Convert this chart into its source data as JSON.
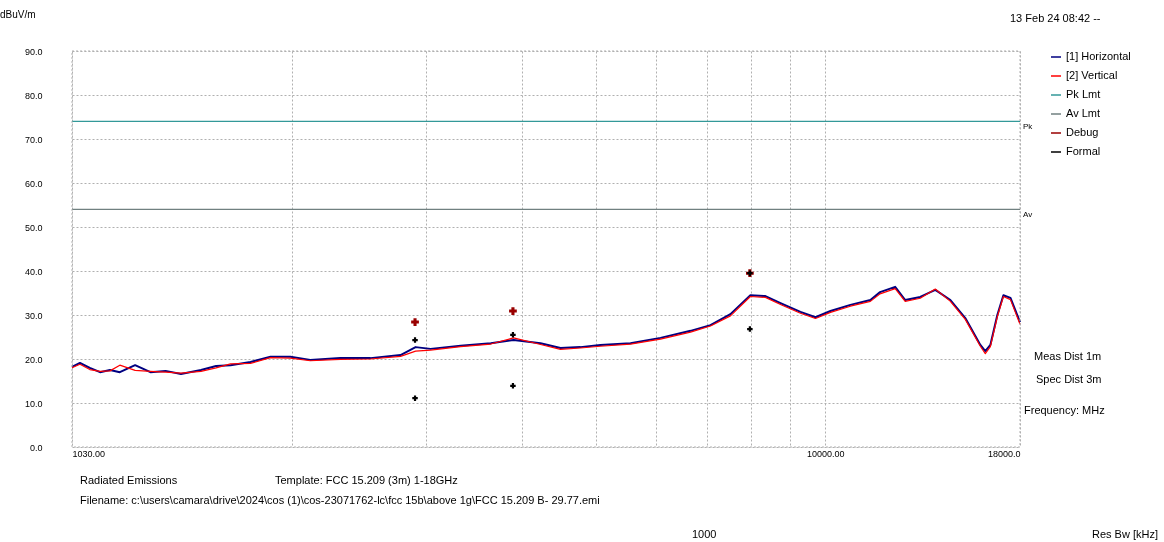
{
  "chart_data": {
    "type": "line",
    "xlabel": "Frequency: MHz",
    "ylabel": "dBuV/m",
    "log": "x",
    "grid": true,
    "legend": "right",
    "xlim": [
      1030,
      18000
    ],
    "xticks": [
      {
        "value": 1030,
        "label": "1030.00"
      },
      {
        "value": 2000,
        "label": null
      },
      {
        "value": 3000,
        "label": null
      },
      {
        "value": 4000,
        "label": null
      },
      {
        "value": 5000,
        "label": null
      },
      {
        "value": 6000,
        "label": null
      },
      {
        "value": 7000,
        "label": null
      },
      {
        "value": 8000,
        "label": null
      },
      {
        "value": 9000,
        "label": null
      },
      {
        "value": 10000,
        "label": "10000.00"
      },
      {
        "value": 18000,
        "label": "18000.0"
      }
    ],
    "ylim": [
      0,
      90
    ],
    "yticks": [
      {
        "value": 0,
        "label": "0.0"
      },
      {
        "value": 10,
        "label": "10.0"
      },
      {
        "value": 20,
        "label": "20.0"
      },
      {
        "value": 30,
        "label": "30.0"
      },
      {
        "value": 40,
        "label": "40.0"
      },
      {
        "value": 50,
        "label": "50.0"
      },
      {
        "value": 60,
        "label": "60.0"
      },
      {
        "value": 70,
        "label": "70.0"
      },
      {
        "value": 80,
        "label": "80.0"
      },
      {
        "value": 90,
        "label": "90.0"
      }
    ],
    "x": [
      1030,
      1055,
      1087,
      1121,
      1155,
      1190,
      1246,
      1305,
      1366,
      1431,
      1520,
      1591,
      1662,
      1765,
      1875,
      1991,
      2114,
      2315,
      2535,
      2776,
      2905,
      3039,
      3328,
      3645,
      3905,
      4236,
      4498,
      4777,
      5074,
      5556,
      6083,
      6660,
      7073,
      7512,
      7979,
      8349,
      8738,
      9280,
      9710,
      10160,
      10790,
      11460,
      11800,
      12350,
      12730,
      13320,
      13940,
      14590,
      15260,
      15970,
      16210,
      16460,
      16810,
      17120,
      17490,
      18000
    ],
    "series": [
      {
        "name": "[1] Horizontal",
        "color": "#000080",
        "values": [
          18.2,
          19.1,
          18.0,
          17.0,
          17.5,
          17.0,
          18.6,
          17.0,
          17.3,
          16.6,
          17.5,
          18.4,
          18.6,
          19.3,
          20.5,
          20.5,
          19.8,
          20.2,
          20.2,
          20.9,
          22.7,
          22.3,
          23.0,
          23.6,
          24.3,
          23.6,
          22.5,
          22.7,
          23.2,
          23.6,
          24.8,
          26.4,
          27.7,
          30.2,
          34.5,
          34.3,
          32.7,
          30.7,
          29.5,
          30.9,
          32.3,
          33.4,
          35.2,
          36.4,
          33.4,
          34.1,
          35.7,
          33.4,
          29.3,
          23.2,
          21.8,
          23.2,
          30.0,
          34.5,
          33.9,
          28.4
        ]
      },
      {
        "name": "[2] Vertical",
        "color": "#ff0000",
        "values": [
          18.0,
          18.8,
          17.6,
          17.2,
          17.3,
          18.6,
          17.4,
          17.2,
          17.0,
          16.8,
          17.2,
          18.0,
          18.9,
          19.0,
          20.3,
          20.2,
          19.6,
          19.9,
          20.0,
          20.6,
          21.8,
          22.0,
          22.8,
          23.4,
          24.8,
          23.3,
          22.2,
          22.5,
          22.9,
          23.4,
          24.5,
          26.1,
          27.5,
          29.8,
          34.2,
          34.0,
          32.4,
          30.4,
          29.2,
          30.6,
          32.0,
          33.1,
          34.8,
          36.0,
          33.1,
          33.8,
          35.9,
          33.1,
          29.0,
          22.9,
          21.2,
          22.8,
          29.6,
          34.2,
          33.5,
          27.9
        ]
      },
      {
        "name": "Pk Lmt",
        "color": "#339999",
        "x": [
          1030,
          18000
        ],
        "values": [
          74,
          74
        ]
      },
      {
        "name": "Av Lmt",
        "color": "#708080",
        "x": [
          1030,
          18000
        ],
        "values": [
          54,
          54
        ]
      },
      {
        "name": "Debug",
        "type": "scatter",
        "marker": "cross",
        "color": "#990000",
        "x": [
          2900,
          3897,
          7966
        ],
        "values": [
          28.4,
          30.9,
          39.5
        ]
      },
      {
        "name": "Formal",
        "type": "scatter",
        "marker": "cross",
        "color": "#000000",
        "x": [
          2900,
          2900,
          3897,
          3897,
          7966,
          7966
        ],
        "values": [
          24.3,
          11.1,
          25.5,
          13.9,
          39.5,
          26.8
        ]
      }
    ],
    "annotations": [
      {
        "text": "Pk",
        "x": 18000,
        "y": 74
      },
      {
        "text": "Av",
        "x": 18000,
        "y": 54
      },
      "13 Feb 24 08:42 --",
      "Meas Dist 1m",
      "Spec Dist 3m",
      "Radiated Emissions",
      "Template: FCC 15.209 (3m) 1-18GHz",
      "Filename: c:\\users\\camara\\drive\\2024\\cos (1)\\cos-23071762-lc\\fcc 15b\\above 1g\\FCC 15.209 B- 29.77.emi",
      "1000",
      "Res Bw [kHz]"
    ]
  }
}
